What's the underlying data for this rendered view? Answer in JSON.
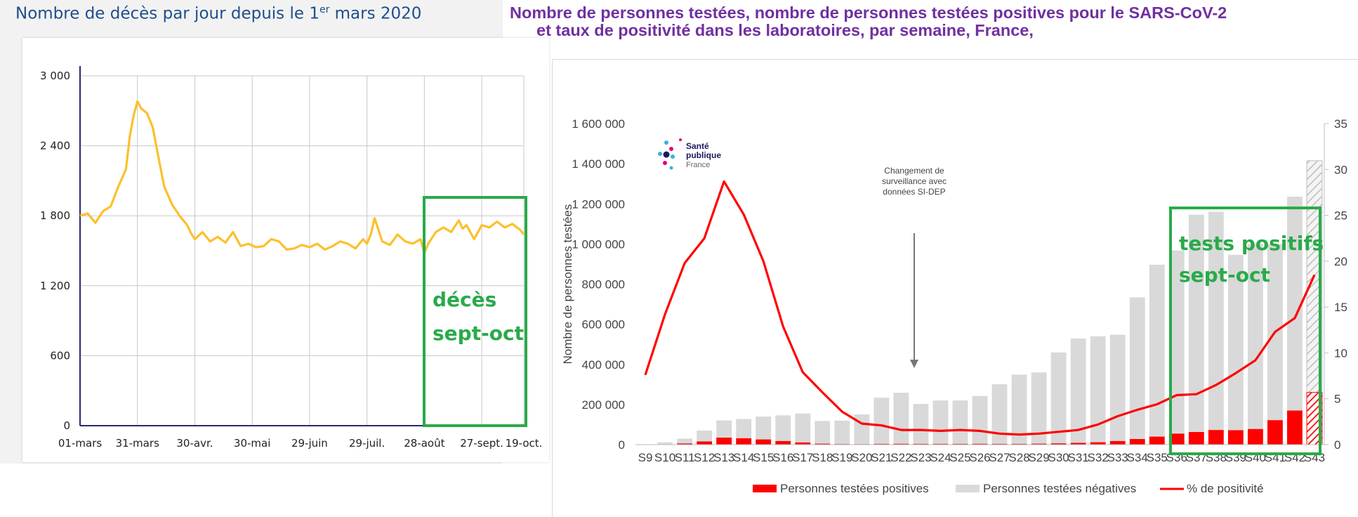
{
  "left_title": {
    "pre": "Nombre de décès par jour depuis le 1",
    "sup": "er",
    "post": " mars 2020"
  },
  "right_title": {
    "line1": "Nombre de personnes testées, nombre de personnes testées positives pour le SARS-CoV-2",
    "line2": "et taux de positivité dans les laboratoires, par semaine, France,"
  },
  "left_annotation": {
    "line1": "décès",
    "line2": "sept-oct"
  },
  "right_annotation": {
    "line1": "tests positifs",
    "line2": "sept-oct"
  },
  "chart_note": {
    "line1": "Changement de",
    "line2": "surveillance avec",
    "line3": "données SI-DEP"
  },
  "logo": {
    "line1": "Santé",
    "line2": "publique",
    "line3": "France"
  },
  "colors": {
    "deaths_line": "#fbc02d",
    "positive": "#ff0000",
    "negative": "#d9d9d9",
    "rate": "#ff0000",
    "highlight": "#2aaa4a"
  },
  "chart_data": [
    {
      "type": "line",
      "title": "Nombre de décès par jour depuis le 1er mars 2020",
      "x_tick_labels": [
        "01-mars",
        "31-mars",
        "30-avr.",
        "30-mai",
        "29-juin",
        "29-juil.",
        "28-août",
        "27-sept.",
        "19-oct."
      ],
      "x_tick_days": [
        0,
        30,
        60,
        90,
        120,
        150,
        180,
        210,
        232
      ],
      "y_ticks": [
        0,
        600,
        1200,
        1800,
        2400,
        3000
      ],
      "y_tick_labels": [
        "0",
        "600",
        "1 200",
        "1 800",
        "2 400",
        "3 000"
      ],
      "ylim": [
        0,
        3000
      ],
      "grid": true,
      "series": [
        {
          "x": [
            0,
            4,
            8,
            12,
            16,
            20,
            24,
            26,
            28,
            30,
            32,
            35,
            38,
            41,
            44,
            48,
            52,
            56,
            58,
            60,
            64,
            68,
            72,
            76,
            80,
            84,
            88,
            92,
            96,
            100,
            104,
            108,
            112,
            116,
            120,
            124,
            128,
            132,
            136,
            140,
            144,
            148,
            150,
            152,
            154,
            158,
            162,
            166,
            170,
            174,
            178,
            180,
            182,
            186,
            190,
            194,
            198,
            200,
            202,
            206,
            210,
            214,
            218,
            222,
            226,
            230,
            232
          ],
          "y": [
            1800,
            1820,
            1740,
            1840,
            1880,
            2050,
            2200,
            2480,
            2660,
            2780,
            2720,
            2680,
            2560,
            2300,
            2050,
            1900,
            1800,
            1720,
            1650,
            1600,
            1660,
            1580,
            1620,
            1570,
            1660,
            1540,
            1560,
            1530,
            1540,
            1600,
            1580,
            1510,
            1520,
            1550,
            1530,
            1560,
            1510,
            1540,
            1580,
            1560,
            1520,
            1600,
            1560,
            1640,
            1780,
            1580,
            1550,
            1640,
            1580,
            1560,
            1600,
            1480,
            1560,
            1660,
            1700,
            1660,
            1760,
            1690,
            1720,
            1600,
            1720,
            1700,
            1750,
            1700,
            1730,
            1680,
            1640
          ]
        }
      ]
    },
    {
      "type": "bar",
      "title": "Nombre de personnes testées, nombre de personnes testées positives pour le SARS-CoV-2 et taux de positivité dans les laboratoires, par semaine, France,",
      "ylabel": "Nombre de personnes  testées",
      "categories": [
        "S9",
        "S10",
        "S11",
        "S12",
        "S13",
        "S14",
        "S15",
        "S16",
        "S17",
        "S18",
        "S19",
        "S20",
        "S21",
        "S22",
        "S23",
        "S24",
        "S25",
        "S26",
        "S27",
        "S28",
        "S29",
        "S30",
        "S31",
        "S32",
        "S33",
        "S34",
        "S35",
        "S36",
        "S37",
        "S38",
        "S39",
        "S40",
        "S41",
        "S42",
        "S43"
      ],
      "y_ticks": [
        0,
        200000,
        400000,
        600000,
        800000,
        1000000,
        1200000,
        1400000,
        1600000
      ],
      "y_tick_labels": [
        "0",
        "200 000",
        "400 000",
        "600 000",
        "800 000",
        "1 000 000",
        "1 200 000",
        "1 400 000",
        "1 600 000"
      ],
      "y2_ticks": [
        0,
        5,
        10,
        15,
        20,
        25,
        30,
        35
      ],
      "y2_tick_labels": [
        "0",
        "5",
        "10",
        "15",
        "20",
        "25",
        "30",
        "35"
      ],
      "ylim": [
        0,
        1600000
      ],
      "y2lim": [
        0,
        35
      ],
      "legend_position": "bottom",
      "series": [
        {
          "name": "Personnes testées positives",
          "values": [
            200,
            1500,
            6000,
            16000,
            35000,
            32000,
            26000,
            18000,
            11000,
            5000,
            3000,
            2500,
            4000,
            4500,
            4000,
            4000,
            4000,
            4500,
            4000,
            4000,
            5000,
            6500,
            9000,
            12000,
            18000,
            28000,
            40000,
            55000,
            63000,
            73000,
            72000,
            78000,
            122000,
            170000,
            260000
          ]
        },
        {
          "name": "Personnes testées négatives",
          "values": [
            2000,
            10000,
            24000,
            54000,
            86000,
            96000,
            114000,
            128000,
            144000,
            113000,
            117000,
            148000,
            230000,
            254000,
            199000,
            216000,
            216000,
            238000,
            297000,
            345000,
            355000,
            453000,
            520000,
            528000,
            530000,
            706000,
            857000,
            913000,
            1083000,
            1087000,
            874000,
            922000,
            878000,
            1066000,
            1155000
          ]
        },
        {
          "name": "% de positivité",
          "values": [
            7.6,
            14.2,
            19.8,
            22.5,
            28.7,
            25.1,
            20.0,
            12.9,
            7.9,
            5.7,
            3.6,
            2.3,
            2.1,
            1.6,
            1.6,
            1.5,
            1.6,
            1.5,
            1.2,
            1.1,
            1.2,
            1.4,
            1.6,
            2.2,
            3.1,
            3.8,
            4.4,
            5.4,
            5.5,
            6.5,
            7.8,
            9.2,
            12.3,
            13.8,
            18.5
          ]
        }
      ]
    }
  ]
}
